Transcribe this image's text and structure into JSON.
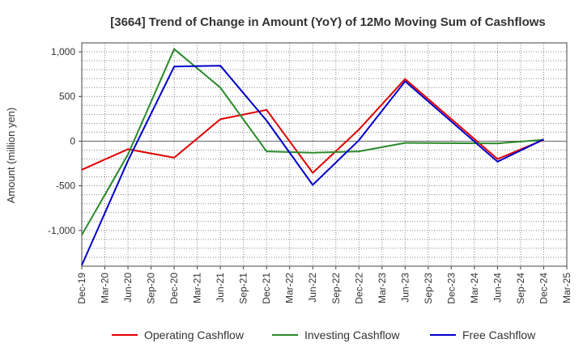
{
  "chart_data": {
    "type": "line",
    "title": "[3664]  Trend of Change in Amount (YoY) of 12Mo Moving Sum of Cashflows",
    "xlabel": "",
    "ylabel": "Amount (million yen)",
    "ylim": [
      -1400,
      1100
    ],
    "yticks": [
      1000,
      500,
      0,
      -500,
      -1000
    ],
    "ytick_labels": [
      "1,000",
      "500",
      "0",
      "-500",
      "-1,000"
    ],
    "grid": true,
    "legend_position": "bottom",
    "categories": [
      "Dec-19",
      "Mar-20",
      "Jun-20",
      "Sep-20",
      "Dec-20",
      "Mar-21",
      "Jun-21",
      "Sep-21",
      "Dec-21",
      "Mar-22",
      "Jun-22",
      "Sep-22",
      "Dec-22",
      "Mar-23",
      "Jun-23",
      "Sep-23",
      "Dec-23",
      "Mar-24",
      "Jun-24",
      "Sep-24",
      "Dec-24",
      "Mar-25"
    ],
    "series": [
      {
        "name": "Operating Cashflow",
        "color": "#e00000",
        "values": [
          -320,
          null,
          -90,
          null,
          -185,
          null,
          245,
          null,
          350,
          null,
          -355,
          null,
          130,
          null,
          695,
          null,
          null,
          null,
          -200,
          null,
          15,
          null
        ]
      },
      {
        "name": "Investing Cashflow",
        "color": "#2a8a2a",
        "values": [
          -1050,
          null,
          -150,
          null,
          1030,
          null,
          600,
          null,
          -115,
          null,
          -130,
          null,
          -115,
          null,
          -20,
          null,
          null,
          null,
          -25,
          null,
          15,
          null
        ]
      },
      {
        "name": "Free Cashflow",
        "color": "#0000cc",
        "values": [
          -1390,
          null,
          -220,
          null,
          835,
          null,
          845,
          null,
          230,
          null,
          -490,
          null,
          10,
          null,
          670,
          null,
          null,
          null,
          -230,
          null,
          20,
          null
        ]
      }
    ]
  }
}
